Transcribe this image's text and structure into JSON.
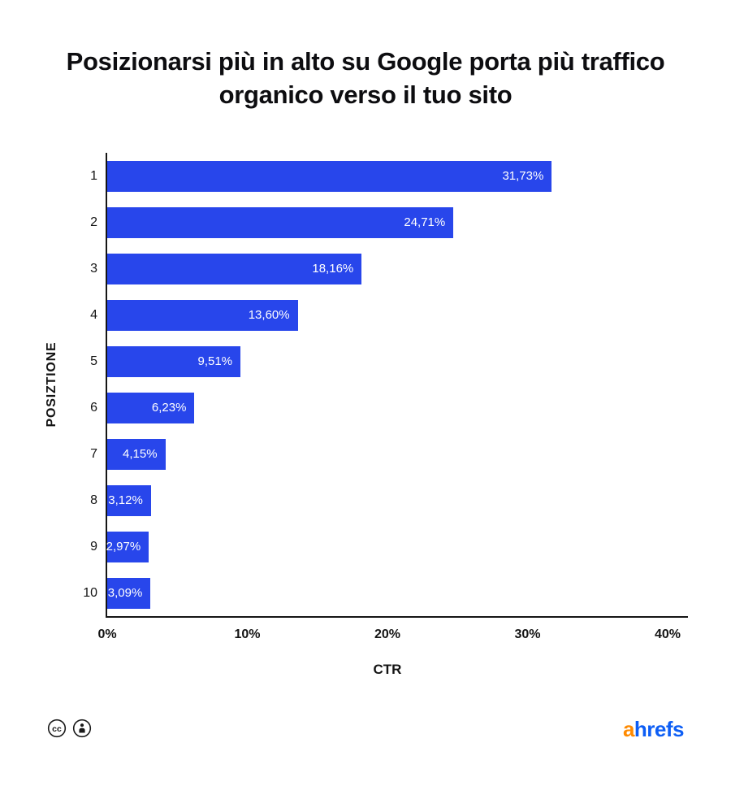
{
  "chart_data": {
    "type": "bar",
    "orientation": "horizontal",
    "title": "Posizionarsi più in alto su Google porta più traffico organico verso il tuo sito",
    "categories": [
      "1",
      "2",
      "3",
      "4",
      "5",
      "6",
      "7",
      "8",
      "9",
      "10"
    ],
    "values": [
      31.73,
      24.71,
      18.16,
      13.6,
      9.51,
      6.23,
      4.15,
      3.12,
      2.97,
      3.09
    ],
    "value_labels": [
      "31,73%",
      "24,71%",
      "18,16%",
      "13,60%",
      "9,51%",
      "6,23%",
      "4,15%",
      "3,12%",
      "2,97%",
      "3,09%"
    ],
    "xlabel": "CTR",
    "ylabel": "POSIZTIONE",
    "x_ticks": [
      "0%",
      "10%",
      "20%",
      "30%",
      "40%"
    ],
    "x_tick_values": [
      0,
      10,
      20,
      30,
      40
    ],
    "xlim": [
      0,
      41.5
    ],
    "bar_color": "#2846eb",
    "grid": false,
    "legend": "none"
  },
  "footer": {
    "license_icons": [
      "cc-icon",
      "cc-by-icon"
    ],
    "logo": {
      "prefix": "a",
      "rest": "hrefs",
      "prefix_color": "#ff8a00",
      "rest_color": "#0d5ef5"
    }
  }
}
